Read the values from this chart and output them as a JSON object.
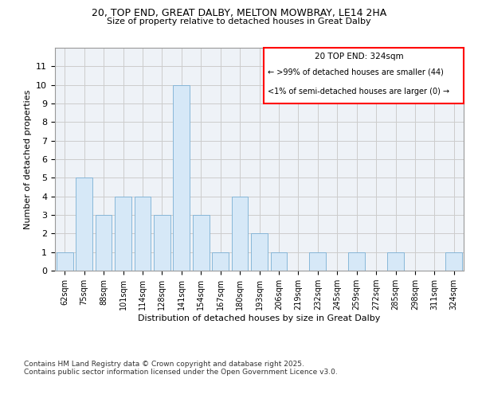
{
  "title1": "20, TOP END, GREAT DALBY, MELTON MOWBRAY, LE14 2HA",
  "title2": "Size of property relative to detached houses in Great Dalby",
  "xlabel": "Distribution of detached houses by size in Great Dalby",
  "ylabel": "Number of detached properties",
  "categories": [
    "62sqm",
    "75sqm",
    "88sqm",
    "101sqm",
    "114sqm",
    "128sqm",
    "141sqm",
    "154sqm",
    "167sqm",
    "180sqm",
    "193sqm",
    "206sqm",
    "219sqm",
    "232sqm",
    "245sqm",
    "259sqm",
    "272sqm",
    "285sqm",
    "298sqm",
    "311sqm",
    "324sqm"
  ],
  "values": [
    1,
    5,
    3,
    4,
    4,
    3,
    10,
    3,
    1,
    4,
    2,
    1,
    0,
    1,
    0,
    1,
    0,
    1,
    0,
    0,
    1
  ],
  "bar_color": "#d6e8f7",
  "bar_edge_color": "#7ab0d4",
  "highlight_index": 20,
  "annotation_title": "20 TOP END: 324sqm",
  "annotation_line1": "← >99% of detached houses are smaller (44)",
  "annotation_line2": "<1% of semi-detached houses are larger (0) →",
  "ylim": [
    0,
    12
  ],
  "yticks": [
    0,
    1,
    2,
    3,
    4,
    5,
    6,
    7,
    8,
    9,
    10,
    11,
    12
  ],
  "grid_color": "#cccccc",
  "bg_color": "#eef2f7",
  "footer1": "Contains HM Land Registry data © Crown copyright and database right 2025.",
  "footer2": "Contains public sector information licensed under the Open Government Licence v3.0."
}
